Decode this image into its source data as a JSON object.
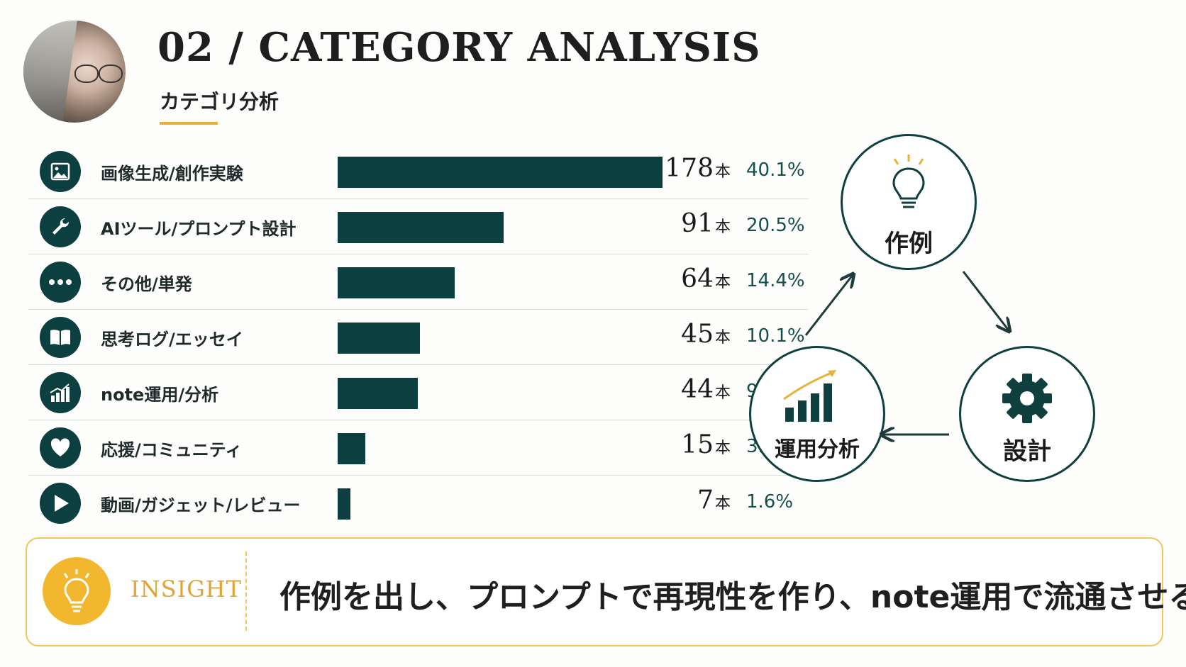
{
  "header": {
    "title": "02 / CATEGORY ANALYSIS",
    "subtitle": "カテゴリ分析"
  },
  "chart_data": {
    "type": "bar",
    "orientation": "horizontal",
    "categories": [
      "画像生成/創作実験",
      "AIツール/プロンプト設計",
      "その他/単発",
      "思考ログ/エッセイ",
      "note運用/分析",
      "応援/コミュニティ",
      "動画/ガジェット/レビュー"
    ],
    "values": [
      178,
      91,
      64,
      45,
      44,
      15,
      7
    ],
    "value_labels": [
      "178",
      "91",
      "64",
      "45",
      "44",
      "15",
      "7"
    ],
    "unit": "本",
    "percentages": [
      "40.1%",
      "20.5%",
      "14.4%",
      "10.1%",
      "9.9%",
      "3.4%",
      "1.6%"
    ],
    "icons": [
      "image-icon",
      "wrench-icon",
      "more-icon",
      "book-icon",
      "growth-chart-icon",
      "heart-icon",
      "play-icon"
    ],
    "bar_color": "#0c3f3f"
  },
  "cycle": {
    "nodes": {
      "example": "作例",
      "design": "設計",
      "analysis": "運用分析"
    },
    "icons": [
      "lightbulb-icon",
      "gear-icon",
      "growth-chart-icon"
    ]
  },
  "insight": {
    "label": "INSIGHT",
    "text": "作例を出し、プロンプトで再現性を作り、note運用で流通させる"
  },
  "colors": {
    "accent": "#e8b23a",
    "teal": "#0c3f3f",
    "pct_text": "#15504d"
  }
}
